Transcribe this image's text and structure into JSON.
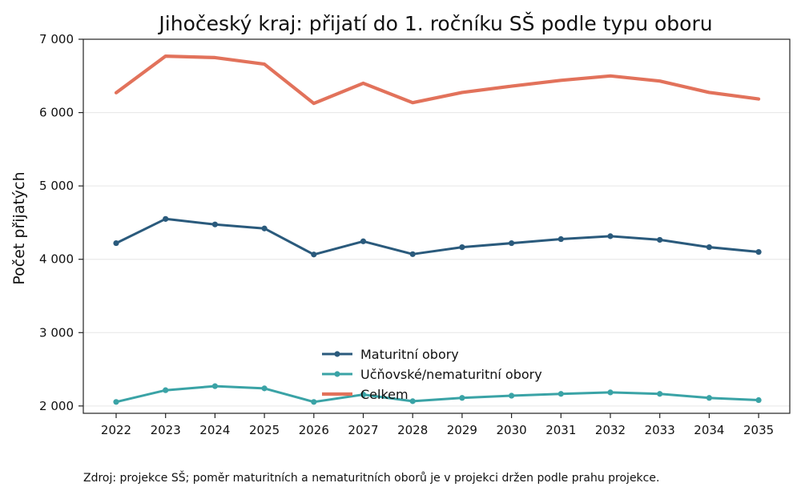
{
  "chart_data": {
    "type": "line",
    "title": "Jihočeský kraj: přijatí do 1. ročníku SŠ podle typu oboru",
    "xlabel": "",
    "ylabel": "Počet přijatých",
    "categories": [
      "2022",
      "2023",
      "2024",
      "2025",
      "2026",
      "2027",
      "2028",
      "2029",
      "2030",
      "2031",
      "2032",
      "2033",
      "2034",
      "2035"
    ],
    "ylim": [
      1900,
      7000
    ],
    "yticks": [
      2000,
      3000,
      4000,
      5000,
      6000,
      7000
    ],
    "ytick_labels": [
      "2 000",
      "3 000",
      "4 000",
      "5 000",
      "6 000",
      "7 000"
    ],
    "grid": "horizontal",
    "legend_position": "lower-center",
    "series": [
      {
        "name": "Maturitní obory",
        "color": "#2a5a7c",
        "marker": true,
        "values": [
          4220,
          4550,
          4475,
          4420,
          4065,
          4245,
          4070,
          4165,
          4220,
          4275,
          4315,
          4265,
          4165,
          4100
        ]
      },
      {
        "name": "Učňovské/nematuritní obory",
        "color": "#3aa3a6",
        "marker": true,
        "values": [
          2055,
          2215,
          2270,
          2240,
          2055,
          2155,
          2065,
          2110,
          2140,
          2165,
          2185,
          2165,
          2110,
          2080
        ]
      },
      {
        "name": "Celkem",
        "color": "#e2725b",
        "marker": false,
        "values": [
          6270,
          6770,
          6750,
          6660,
          6125,
          6400,
          6135,
          6275,
          6360,
          6440,
          6500,
          6430,
          6275,
          6185
        ]
      }
    ]
  },
  "footer": {
    "source": "Zdroj: projekce SŠ; poměr maturitních a nematuritních oborů je v projekci držen podle prahu projekce."
  }
}
